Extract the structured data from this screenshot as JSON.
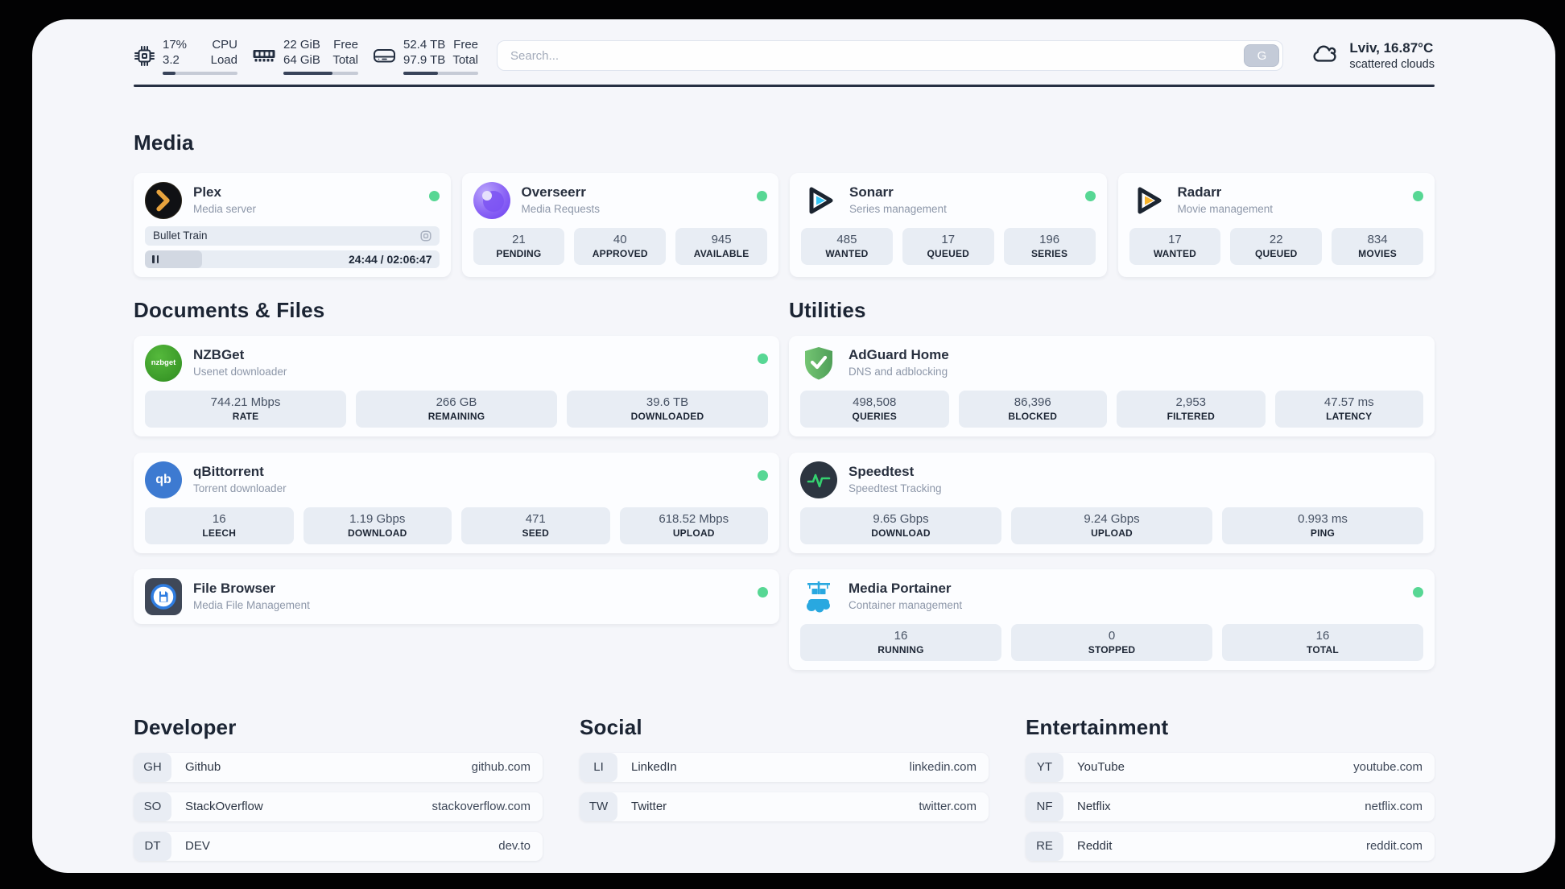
{
  "colors": {
    "status_green": "#57d794",
    "accent_dark": "#273043"
  },
  "topbar": {
    "cpu": {
      "value_top": "17%",
      "value_bottom": "3.2",
      "label_top": "CPU",
      "label_bottom": "Load",
      "progress": 17
    },
    "ram": {
      "value_top": "22 GiB",
      "value_bottom": "64 GiB",
      "label_top": "Free",
      "label_bottom": "Total",
      "progress": 66
    },
    "disk": {
      "value_top": "52.4 TB",
      "value_bottom": "97.9 TB",
      "label_top": "Free",
      "label_bottom": "Total",
      "progress": 46
    },
    "search": {
      "placeholder": "Search...",
      "engine_button": "G"
    },
    "weather": {
      "location": "Lviv, 16.87°C",
      "condition": "scattered clouds"
    }
  },
  "media": {
    "heading": "Media",
    "plex": {
      "title": "Plex",
      "subtitle": "Media server",
      "now_playing": "Bullet Train",
      "time": "24:44 / 02:06:47",
      "progress": 19.5
    },
    "overseerr": {
      "title": "Overseerr",
      "subtitle": "Media Requests",
      "stats": [
        {
          "value": "21",
          "label": "PENDING"
        },
        {
          "value": "40",
          "label": "APPROVED"
        },
        {
          "value": "945",
          "label": "AVAILABLE"
        }
      ]
    },
    "sonarr": {
      "title": "Sonarr",
      "subtitle": "Series management",
      "stats": [
        {
          "value": "485",
          "label": "WANTED"
        },
        {
          "value": "17",
          "label": "QUEUED"
        },
        {
          "value": "196",
          "label": "SERIES"
        }
      ]
    },
    "radarr": {
      "title": "Radarr",
      "subtitle": "Movie management",
      "stats": [
        {
          "value": "17",
          "label": "WANTED"
        },
        {
          "value": "22",
          "label": "QUEUED"
        },
        {
          "value": "834",
          "label": "MOVIES"
        }
      ]
    }
  },
  "documents": {
    "heading": "Documents & Files",
    "nzbget": {
      "title": "NZBGet",
      "subtitle": "Usenet downloader",
      "icon_text": "nzbget",
      "stats": [
        {
          "value": "744.21 Mbps",
          "label": "RATE"
        },
        {
          "value": "266 GB",
          "label": "REMAINING"
        },
        {
          "value": "39.6 TB",
          "label": "DOWNLOADED"
        }
      ]
    },
    "qbittorrent": {
      "title": "qBittorrent",
      "subtitle": "Torrent downloader",
      "icon_text": "qb",
      "stats": [
        {
          "value": "16",
          "label": "LEECH"
        },
        {
          "value": "1.19 Gbps",
          "label": "DOWNLOAD"
        },
        {
          "value": "471",
          "label": "SEED"
        },
        {
          "value": "618.52 Mbps",
          "label": "UPLOAD"
        }
      ]
    },
    "filebrowser": {
      "title": "File Browser",
      "subtitle": "Media File Management"
    }
  },
  "utilities": {
    "heading": "Utilities",
    "adguard": {
      "title": "AdGuard Home",
      "subtitle": "DNS and adblocking",
      "stats": [
        {
          "value": "498,508",
          "label": "QUERIES"
        },
        {
          "value": "86,396",
          "label": "BLOCKED"
        },
        {
          "value": "2,953",
          "label": "FILTERED"
        },
        {
          "value": "47.57 ms",
          "label": "LATENCY"
        }
      ]
    },
    "speedtest": {
      "title": "Speedtest",
      "subtitle": "Speedtest Tracking",
      "stats": [
        {
          "value": "9.65 Gbps",
          "label": "DOWNLOAD"
        },
        {
          "value": "9.24 Gbps",
          "label": "UPLOAD"
        },
        {
          "value": "0.993 ms",
          "label": "PING"
        }
      ]
    },
    "portainer": {
      "title": "Media Portainer",
      "subtitle": "Container management",
      "stats": [
        {
          "value": "16",
          "label": "RUNNING"
        },
        {
          "value": "0",
          "label": "STOPPED"
        },
        {
          "value": "16",
          "label": "TOTAL"
        }
      ]
    }
  },
  "links": {
    "developer": {
      "heading": "Developer",
      "items": [
        {
          "abbr": "GH",
          "name": "Github",
          "domain": "github.com"
        },
        {
          "abbr": "SO",
          "name": "StackOverflow",
          "domain": "stackoverflow.com"
        },
        {
          "abbr": "DT",
          "name": "DEV",
          "domain": "dev.to"
        }
      ]
    },
    "social": {
      "heading": "Social",
      "items": [
        {
          "abbr": "LI",
          "name": "LinkedIn",
          "domain": "linkedin.com"
        },
        {
          "abbr": "TW",
          "name": "Twitter",
          "domain": "twitter.com"
        }
      ]
    },
    "entertainment": {
      "heading": "Entertainment",
      "items": [
        {
          "abbr": "YT",
          "name": "YouTube",
          "domain": "youtube.com"
        },
        {
          "abbr": "NF",
          "name": "Netflix",
          "domain": "netflix.com"
        },
        {
          "abbr": "RE",
          "name": "Reddit",
          "domain": "reddit.com"
        }
      ]
    }
  }
}
